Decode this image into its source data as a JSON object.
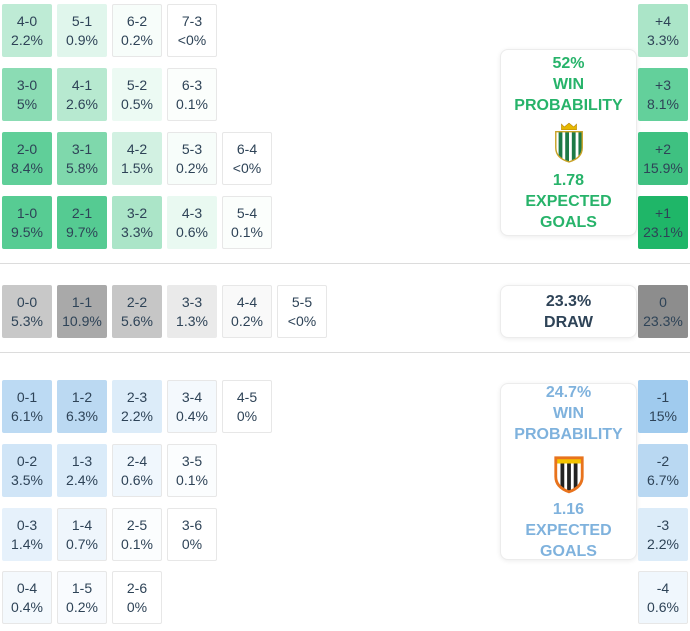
{
  "colors": {
    "home_accent": "#27b36a",
    "away_accent": "#7fb2dd",
    "text_dark": "#2e4357",
    "divider": "#dcdcdc"
  },
  "home": {
    "rows": [
      [
        {
          "s": "4-0",
          "p": "2.2%",
          "bg": "#beebd5"
        },
        {
          "s": "5-1",
          "p": "0.9%",
          "bg": "#e0f6ec"
        },
        {
          "s": "6-2",
          "p": "0.2%",
          "bg": "#f7fdfa"
        },
        {
          "s": "7-3",
          "p": "<0%",
          "bg": "#ffffff"
        }
      ],
      [
        {
          "s": "3-0",
          "p": "5%",
          "bg": "#8bdcb4"
        },
        {
          "s": "4-1",
          "p": "2.6%",
          "bg": "#b7e9d0"
        },
        {
          "s": "5-2",
          "p": "0.5%",
          "bg": "#ecfaf3"
        },
        {
          "s": "6-3",
          "p": "0.1%",
          "bg": "#fbfefc"
        }
      ],
      [
        {
          "s": "2-0",
          "p": "8.4%",
          "bg": "#60cf99"
        },
        {
          "s": "3-1",
          "p": "5.8%",
          "bg": "#7fd8ac"
        },
        {
          "s": "4-2",
          "p": "1.5%",
          "bg": "#d2f1e2"
        },
        {
          "s": "5-3",
          "p": "0.2%",
          "bg": "#f7fdfa"
        },
        {
          "s": "6-4",
          "p": "<0%",
          "bg": "#ffffff"
        }
      ],
      [
        {
          "s": "1-0",
          "p": "9.5%",
          "bg": "#57cc93"
        },
        {
          "s": "2-1",
          "p": "9.7%",
          "bg": "#55cb92"
        },
        {
          "s": "3-2",
          "p": "3.3%",
          "bg": "#abe5c8"
        },
        {
          "s": "4-3",
          "p": "0.6%",
          "bg": "#e9f9f1"
        },
        {
          "s": "5-4",
          "p": "0.1%",
          "bg": "#fbfefc"
        }
      ]
    ],
    "margins": [
      {
        "m": "+4",
        "p": "3.3%",
        "bg": "#abe5c8"
      },
      {
        "m": "+3",
        "p": "8.1%",
        "bg": "#63d09b"
      },
      {
        "m": "+2",
        "p": "15.9%",
        "bg": "#3fc181"
      },
      {
        "m": "+1",
        "p": "23.1%",
        "bg": "#1fb668"
      }
    ],
    "panel": {
      "prob": "52%",
      "win1": "WIN",
      "win2": "PROBABILITY",
      "goals": "1.78",
      "exp1": "EXPECTED",
      "exp2": "GOALS"
    }
  },
  "draw": {
    "rows": [
      [
        {
          "s": "0-0",
          "p": "5.3%",
          "bg": "#c8c8c8"
        },
        {
          "s": "1-1",
          "p": "10.9%",
          "bg": "#a9a9a9"
        },
        {
          "s": "2-2",
          "p": "5.6%",
          "bg": "#c6c6c6"
        },
        {
          "s": "3-3",
          "p": "1.3%",
          "bg": "#eaeaea"
        },
        {
          "s": "4-4",
          "p": "0.2%",
          "bg": "#f9f9f9"
        },
        {
          "s": "5-5",
          "p": "<0%",
          "bg": "#ffffff"
        }
      ]
    ],
    "margins": [
      {
        "m": "0",
        "p": "23.3%",
        "bg": "#8d8d8d"
      }
    ],
    "panel": {
      "prob": "23.3%",
      "label": "DRAW"
    }
  },
  "away": {
    "rows": [
      [
        {
          "s": "0-1",
          "p": "6.1%",
          "bg": "#bcdaf3"
        },
        {
          "s": "1-2",
          "p": "6.3%",
          "bg": "#bbd9f2"
        },
        {
          "s": "2-3",
          "p": "2.2%",
          "bg": "#dcecf9"
        },
        {
          "s": "3-4",
          "p": "0.4%",
          "bg": "#f4f9fd"
        },
        {
          "s": "4-5",
          "p": "0%",
          "bg": "#ffffff"
        }
      ],
      [
        {
          "s": "0-2",
          "p": "3.5%",
          "bg": "#d0e5f7"
        },
        {
          "s": "1-3",
          "p": "2.4%",
          "bg": "#daebf9"
        },
        {
          "s": "2-4",
          "p": "0.6%",
          "bg": "#f0f7fd"
        },
        {
          "s": "3-5",
          "p": "0.1%",
          "bg": "#fbfdfe"
        }
      ],
      [
        {
          "s": "0-3",
          "p": "1.4%",
          "bg": "#e6f1fb"
        },
        {
          "s": "1-4",
          "p": "0.7%",
          "bg": "#eff6fc"
        },
        {
          "s": "2-5",
          "p": "0.1%",
          "bg": "#fbfdfe"
        },
        {
          "s": "3-6",
          "p": "0%",
          "bg": "#ffffff"
        }
      ],
      [
        {
          "s": "0-4",
          "p": "0.4%",
          "bg": "#f4f9fd"
        },
        {
          "s": "1-5",
          "p": "0.2%",
          "bg": "#f9fbfe"
        },
        {
          "s": "2-6",
          "p": "0%",
          "bg": "#ffffff"
        }
      ]
    ],
    "margins": [
      {
        "m": "-1",
        "p": "15%",
        "bg": "#a0cbee"
      },
      {
        "m": "-2",
        "p": "6.7%",
        "bg": "#b9d8f2"
      },
      {
        "m": "-3",
        "p": "2.2%",
        "bg": "#dcecf9"
      },
      {
        "m": "-4",
        "p": "0.6%",
        "bg": "#f0f7fd"
      }
    ],
    "panel": {
      "prob": "24.7%",
      "win1": "WIN",
      "win2": "PROBABILITY",
      "goals": "1.16",
      "exp1": "EXPECTED",
      "exp2": "GOALS"
    }
  },
  "chart_data": {
    "type": "heatmap",
    "title": "Correct score probability matrix with win/draw probabilities and expected goals",
    "home_team": {
      "win_probability_pct": 52,
      "expected_goals": 1.78,
      "score_probabilities": {
        "4-0": "2.2%",
        "5-1": "0.9%",
        "6-2": "0.2%",
        "7-3": "<0%",
        "3-0": "5%",
        "4-1": "2.6%",
        "5-2": "0.5%",
        "6-3": "0.1%",
        "2-0": "8.4%",
        "3-1": "5.8%",
        "4-2": "1.5%",
        "5-3": "0.2%",
        "6-4": "<0%",
        "1-0": "9.5%",
        "2-1": "9.7%",
        "3-2": "3.3%",
        "4-3": "0.6%",
        "5-4": "0.1%"
      }
    },
    "draw": {
      "probability_pct": 23.3,
      "score_probabilities": {
        "0-0": "5.3%",
        "1-1": "10.9%",
        "2-2": "5.6%",
        "3-3": "1.3%",
        "4-4": "0.2%",
        "5-5": "<0%"
      }
    },
    "away_team": {
      "win_probability_pct": 24.7,
      "expected_goals": 1.16,
      "score_probabilities": {
        "0-1": "6.1%",
        "1-2": "6.3%",
        "2-3": "2.2%",
        "3-4": "0.4%",
        "4-5": "0%",
        "0-2": "3.5%",
        "1-3": "2.4%",
        "2-4": "0.6%",
        "3-5": "0.1%",
        "0-3": "1.4%",
        "1-4": "0.7%",
        "2-5": "0.1%",
        "3-6": "0%",
        "0-4": "0.4%",
        "1-5": "0.2%",
        "2-6": "0%"
      }
    },
    "goal_margin_probabilities": {
      "+4": "3.3%",
      "+3": "8.1%",
      "+2": "15.9%",
      "+1": "23.1%",
      "0": "23.3%",
      "-1": "15%",
      "-2": "6.7%",
      "-3": "2.2%",
      "-4": "0.6%"
    },
    "layout_hints": {
      "grid": "off",
      "legend": "none",
      "sections": [
        "home win (green)",
        "draw (gray)",
        "away win (blue)"
      ]
    }
  }
}
